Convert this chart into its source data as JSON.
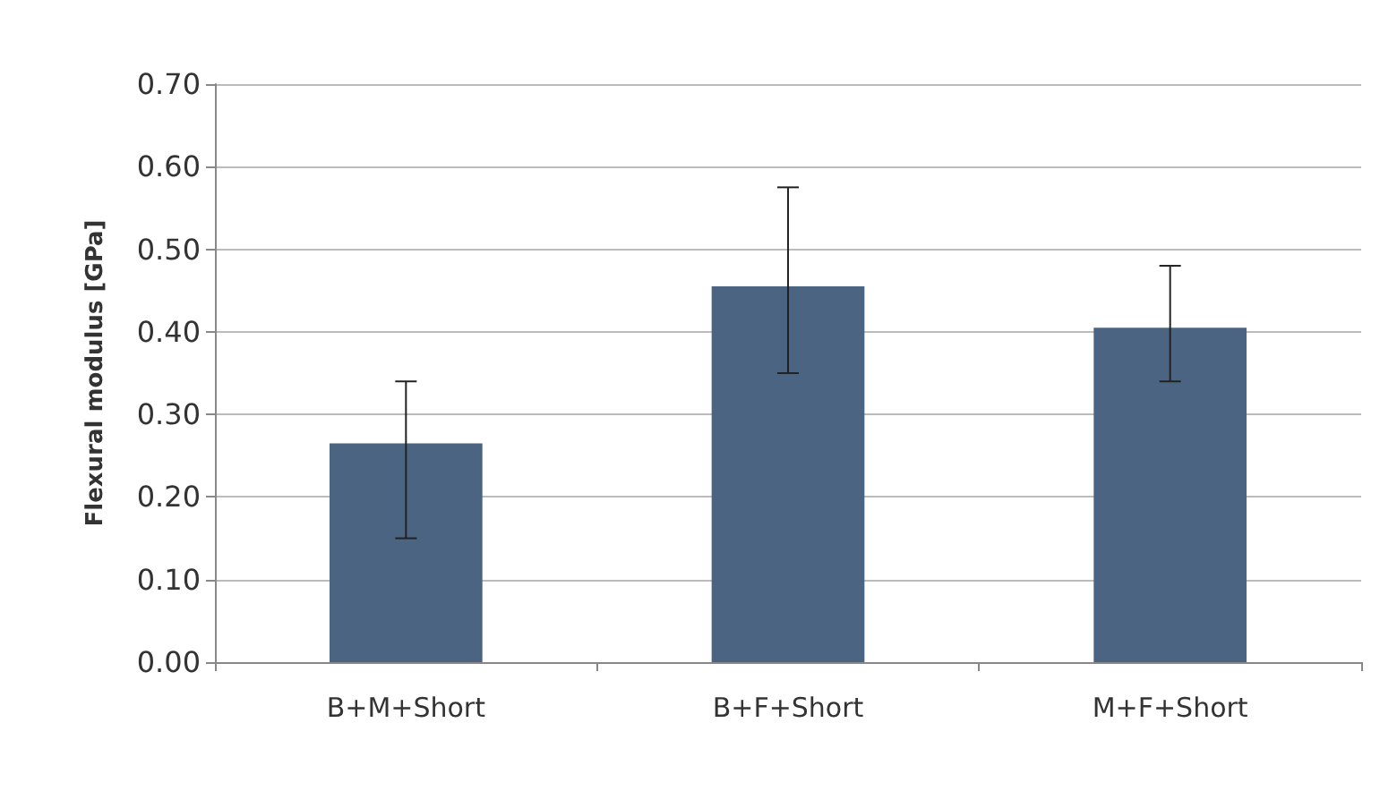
{
  "chart_data": {
    "type": "bar",
    "ylabel": "Flexural modulus [GPa]",
    "categories": [
      "B+M+Short",
      "B+F+Short",
      "M+F+Short"
    ],
    "values": [
      0.265,
      0.455,
      0.405
    ],
    "errors": [
      [
        0.15,
        0.34
      ],
      [
        0.35,
        0.575
      ],
      [
        0.34,
        0.48
      ]
    ],
    "color": "#4a6482",
    "ylim": [
      0,
      0.7
    ],
    "yticks": [
      {
        "value": 0,
        "label": "0.00"
      },
      {
        "value": 0.1,
        "label": "0.10"
      },
      {
        "value": 0.2,
        "label": "0.20"
      },
      {
        "value": 0.3,
        "label": "0.30"
      },
      {
        "value": 0.4,
        "label": "0.40"
      },
      {
        "value": 0.5,
        "label": "0.50"
      },
      {
        "value": 0.6,
        "label": "0.60"
      },
      {
        "value": 0.7,
        "label": "0.70"
      }
    ],
    "grid": "y"
  }
}
